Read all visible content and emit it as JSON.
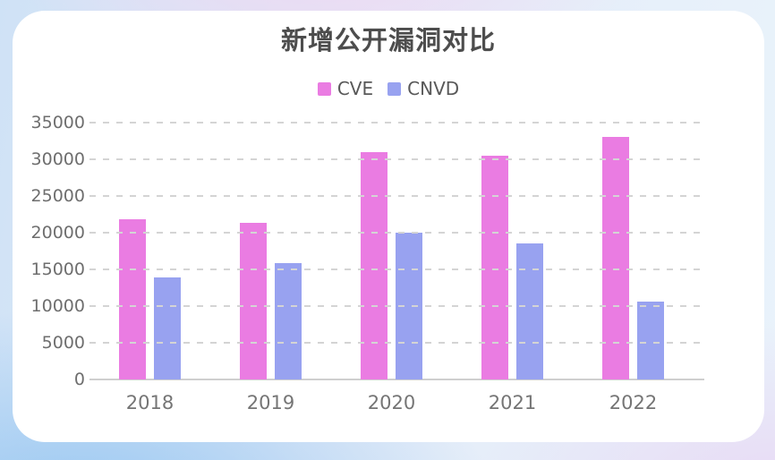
{
  "title": "新增公开漏洞对比",
  "colors": {
    "cve": "#ea7ce2",
    "cnvd": "#98a2f0",
    "title_text": "#4d4d4d",
    "axis_text": "#6e6e6e",
    "grid": "#d4d4d4",
    "card_background": "#ffffff"
  },
  "chart_data": {
    "type": "bar",
    "title": "新增公开漏洞对比",
    "categories": [
      "2018",
      "2019",
      "2020",
      "2021",
      "2022"
    ],
    "series": [
      {
        "name": "CVE",
        "color": "#ea7ce2",
        "values": [
          21800,
          21400,
          31000,
          30500,
          33000
        ]
      },
      {
        "name": "CNVD",
        "color": "#98a2f0",
        "values": [
          13900,
          15900,
          20000,
          18500,
          10600
        ]
      }
    ],
    "xlabel": "",
    "ylabel": "",
    "ylim": [
      0,
      35000
    ],
    "ytick_step": 5000,
    "yticks": [
      "0",
      "5000",
      "10000",
      "15000",
      "20000",
      "25000",
      "30000",
      "35000"
    ],
    "grid": "horizontal-dashed",
    "legend_position": "top-center"
  }
}
